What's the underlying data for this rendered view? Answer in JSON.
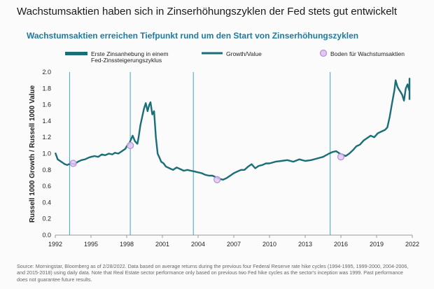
{
  "page": {
    "title": "Wachstumsaktien haben sich in Zinserhöhungszyklen der Fed stets gut entwickelt",
    "subtitle": "Wachstumsaktien erreichen Tiefpunkt rund um den Start von Zinserhöhungszyklen",
    "source": "Source: Morningstar, Bloomberg as of 2/28/2022. Data based on average returns during the previous four Federal Reserve rate hike cycles (1994-1995, 1999-2000, 2004-2006, and 2015-2018) using daily data. Note that Real Estate sector performance only based on previous two Fed hike cycles as the sector's inception was 1999. Past performance does not guarantee future results."
  },
  "colors": {
    "line": "#1a6e78",
    "marker": "#1a6e78",
    "bottom": "#b48fd9",
    "axis": "#999999"
  },
  "chart_data": {
    "type": "line",
    "ylabel": "Russell 1000 Growth / Russell 1000 Value",
    "xlabel": "",
    "xlim": [
      1992,
      2022
    ],
    "ylim": [
      0.0,
      2.0
    ],
    "x_ticks": [
      "1992",
      "1995",
      "1998",
      "2001",
      "2004",
      "2007",
      "2010",
      "2013",
      "2016",
      "2019",
      "2022"
    ],
    "y_ticks": [
      "0.0",
      "0.2",
      "0.4",
      "0.6",
      "0.8",
      "1.0",
      "1.2",
      "1.4",
      "1.6",
      "1.8",
      "2.0"
    ],
    "legend": {
      "placement": "top",
      "hike_label": "Erste Zinsanhebung in einem Fed-Zinssteigerungszyklus",
      "series_label": "Growth/Value",
      "bottom_label": "Boden für Wachstumsaktien"
    },
    "series": [
      {
        "name": "Growth/Value",
        "x": [
          1992.0,
          1992.2,
          1992.5,
          1992.8,
          1993.0,
          1993.3,
          1993.6,
          1993.9,
          1994.2,
          1994.5,
          1994.8,
          1995.0,
          1995.3,
          1995.6,
          1995.9,
          1996.2,
          1996.5,
          1996.8,
          1997.0,
          1997.3,
          1997.6,
          1997.9,
          1998.0,
          1998.2,
          1998.5,
          1998.7,
          1998.9,
          1999.0,
          1999.15,
          1999.3,
          1999.45,
          1999.6,
          1999.75,
          1999.9,
          2000.0,
          2000.15,
          2000.3,
          2000.45,
          2000.6,
          2000.75,
          2000.9,
          2001.1,
          2001.3,
          2001.6,
          2001.9,
          2002.2,
          2002.5,
          2002.8,
          2003.1,
          2003.4,
          2003.7,
          2004.0,
          2004.3,
          2004.6,
          2004.9,
          2005.2,
          2005.5,
          2005.8,
          2006.1,
          2006.4,
          2006.7,
          2007.0,
          2007.3,
          2007.6,
          2007.9,
          2008.2,
          2008.5,
          2008.8,
          2009.1,
          2009.4,
          2009.7,
          2010.0,
          2010.5,
          2011.0,
          2011.5,
          2012.0,
          2012.5,
          2013.0,
          2013.5,
          2014.0,
          2014.5,
          2015.0,
          2015.3,
          2015.6,
          2015.9,
          2016.1,
          2016.4,
          2016.7,
          2017.0,
          2017.3,
          2017.6,
          2017.9,
          2018.2,
          2018.5,
          2018.8,
          2019.1,
          2019.4,
          2019.7,
          2019.9,
          2020.1,
          2020.3,
          2020.5,
          2020.6,
          2020.75,
          2020.9,
          2021.0,
          2021.15,
          2021.3,
          2021.45,
          2021.6,
          2021.75,
          2021.9,
          2022.0,
          2022.15
        ],
        "y": [
          1.01,
          0.93,
          0.9,
          0.87,
          0.86,
          0.88,
          0.87,
          0.9,
          0.92,
          0.93,
          0.95,
          0.96,
          0.97,
          0.96,
          0.99,
          0.98,
          1.0,
          0.99,
          1.01,
          1.0,
          1.03,
          1.06,
          1.09,
          1.12,
          1.22,
          1.15,
          1.12,
          1.2,
          1.35,
          1.45,
          1.55,
          1.62,
          1.52,
          1.6,
          1.63,
          1.48,
          1.52,
          1.2,
          1.0,
          0.95,
          0.9,
          0.88,
          0.84,
          0.82,
          0.8,
          0.83,
          0.81,
          0.79,
          0.8,
          0.79,
          0.78,
          0.77,
          0.76,
          0.74,
          0.73,
          0.73,
          0.71,
          0.69,
          0.68,
          0.7,
          0.73,
          0.76,
          0.78,
          0.8,
          0.8,
          0.84,
          0.87,
          0.82,
          0.85,
          0.86,
          0.88,
          0.88,
          0.9,
          0.91,
          0.92,
          0.9,
          0.93,
          0.91,
          0.92,
          0.94,
          0.96,
          1.0,
          1.02,
          1.03,
          1.0,
          0.99,
          0.97,
          1.0,
          1.04,
          1.09,
          1.11,
          1.16,
          1.19,
          1.22,
          1.2,
          1.25,
          1.27,
          1.29,
          1.32,
          1.45,
          1.62,
          1.78,
          1.9,
          1.82,
          1.78,
          1.76,
          1.72,
          1.65,
          1.8,
          1.85,
          1.77,
          1.92,
          1.75,
          1.66
        ]
      }
    ],
    "rate_hike_starts": [
      1993.2,
      1998.3,
      2003.6,
      2015.1
    ],
    "growth_bottoms": [
      {
        "x": 1993.5,
        "y": 0.88
      },
      {
        "x": 1998.3,
        "y": 1.1
      },
      {
        "x": 2005.6,
        "y": 0.68
      },
      {
        "x": 2016.0,
        "y": 0.96
      }
    ]
  }
}
